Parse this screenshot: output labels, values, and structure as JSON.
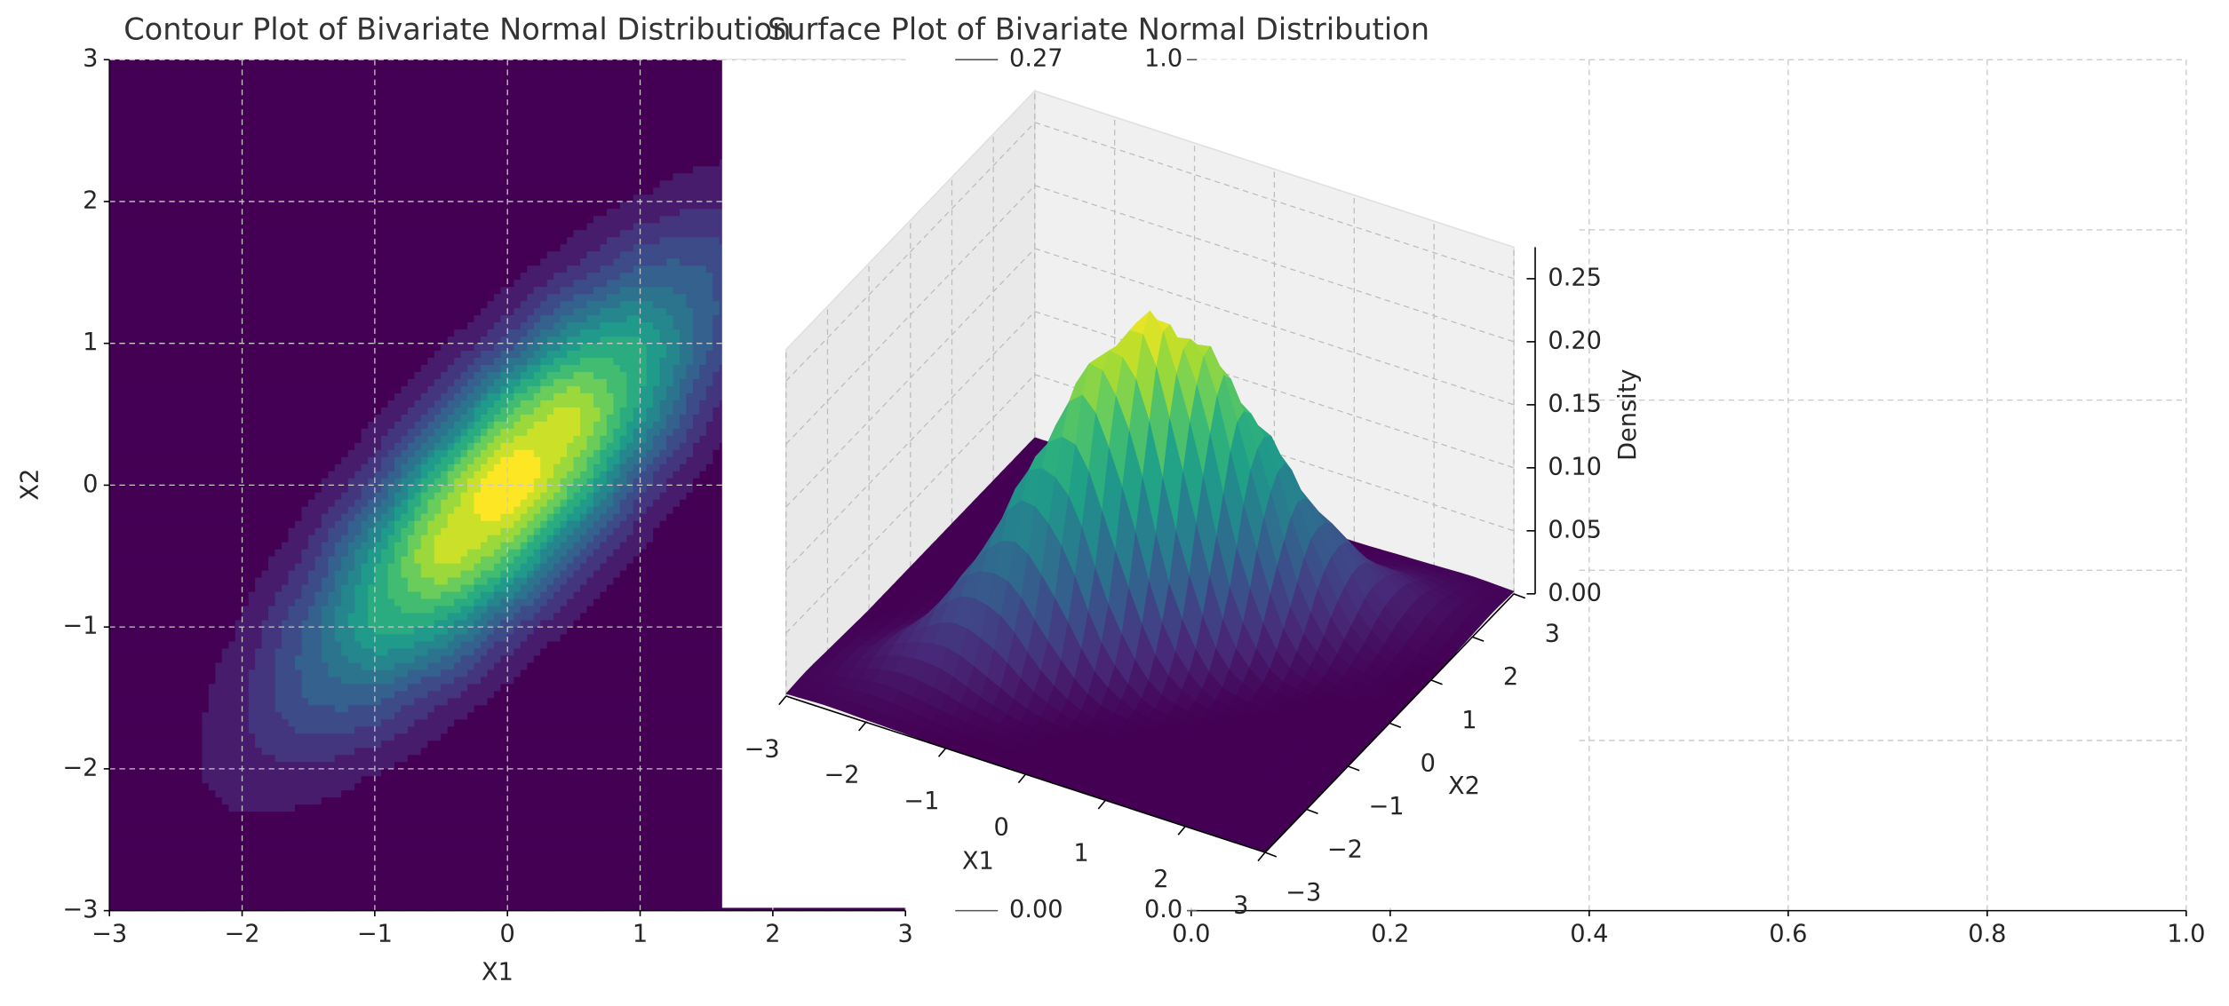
{
  "chart_data": [
    {
      "type": "contour",
      "title": "Contour Plot of Bivariate Normal Distribution",
      "xlabel": "X1",
      "ylabel": "X2",
      "x": [
        -3,
        -2.5,
        -2,
        -1.5,
        -1,
        -0.5,
        0,
        0.5,
        1,
        1.5,
        2,
        2.5,
        3
      ],
      "y": [
        -3,
        -2.5,
        -2,
        -1.5,
        -1,
        -0.5,
        0,
        0.5,
        1,
        1.5,
        2,
        2.5,
        3
      ],
      "z": [
        [
          0.002,
          0.003,
          0.002,
          0.001,
          0,
          0,
          0,
          0,
          0,
          0,
          0,
          0,
          0
        ],
        [
          0.003,
          0.008,
          0.012,
          0.008,
          0.003,
          0.001,
          0,
          0,
          0,
          0,
          0,
          0,
          0
        ],
        [
          0.002,
          0.012,
          0.029,
          0.035,
          0.022,
          0.007,
          0.001,
          0,
          0,
          0,
          0,
          0,
          0
        ],
        [
          0.001,
          0.008,
          0.035,
          0.076,
          0.081,
          0.044,
          0.012,
          0.002,
          0,
          0,
          0,
          0,
          0
        ],
        [
          0,
          0.003,
          0.022,
          0.081,
          0.152,
          0.142,
          0.066,
          0.016,
          0.002,
          0,
          0,
          0,
          0
        ],
        [
          0,
          0.001,
          0.007,
          0.044,
          0.142,
          0.23,
          0.187,
          0.076,
          0.016,
          0.002,
          0,
          0,
          0
        ],
        [
          0,
          0,
          0.001,
          0.012,
          0.066,
          0.187,
          0.265,
          0.187,
          0.066,
          0.012,
          0.001,
          0,
          0
        ],
        [
          0,
          0,
          0,
          0.002,
          0.016,
          0.076,
          0.187,
          0.23,
          0.142,
          0.044,
          0.007,
          0.001,
          0
        ],
        [
          0,
          0,
          0,
          0,
          0.002,
          0.016,
          0.066,
          0.142,
          0.152,
          0.081,
          0.022,
          0.003,
          0
        ],
        [
          0,
          0,
          0,
          0,
          0,
          0.002,
          0.012,
          0.044,
          0.081,
          0.076,
          0.035,
          0.008,
          0.001
        ],
        [
          0,
          0,
          0,
          0,
          0,
          0,
          0.001,
          0.007,
          0.022,
          0.035,
          0.029,
          0.012,
          0.002
        ],
        [
          0,
          0,
          0,
          0,
          0,
          0,
          0,
          0.001,
          0.003,
          0.008,
          0.012,
          0.008,
          0.003
        ],
        [
          0,
          0,
          0,
          0,
          0,
          0,
          0,
          0,
          0,
          0.001,
          0.002,
          0.003,
          0.002
        ]
      ],
      "xlim": [
        -3,
        3
      ],
      "ylim": [
        -3,
        3
      ],
      "xticks": [
        {
          "value": -3,
          "label": "−3"
        },
        {
          "value": -2,
          "label": "−2"
        },
        {
          "value": -1,
          "label": "−1"
        },
        0,
        1,
        2,
        3
      ],
      "yticks": [
        {
          "value": -3,
          "label": "−3"
        },
        {
          "value": -2,
          "label": "−2"
        },
        {
          "value": -1,
          "label": "−1"
        },
        0,
        1,
        2,
        3
      ],
      "grid": true,
      "colormap": "viridis"
    },
    {
      "type": "surface",
      "title": "Surface Plot of Bivariate Normal Distribution",
      "xlabel": "X1",
      "ylabel": "X2",
      "zlabel": "Density",
      "xlim": [
        -3,
        3
      ],
      "ylim": [
        -3,
        3
      ],
      "zlim": [
        0,
        0.275
      ],
      "xticks": [
        {
          "value": -3,
          "label": "−3"
        },
        {
          "value": -2,
          "label": "−2"
        },
        {
          "value": -1,
          "label": "−1"
        },
        0,
        1,
        2,
        3
      ],
      "yticks": [
        {
          "value": -3,
          "label": "−3"
        },
        {
          "value": -2,
          "label": "−2"
        },
        {
          "value": -1,
          "label": "−1"
        },
        0,
        1,
        2,
        3
      ],
      "zticks": [
        {
          "value": 0,
          "label": "0.00"
        },
        {
          "value": 0.05,
          "label": "0.05"
        },
        {
          "value": 0.1,
          "label": "0.10"
        },
        {
          "value": 0.15,
          "label": "0.15"
        },
        {
          "value": 0.2,
          "label": "0.20"
        },
        {
          "value": 0.25,
          "label": "0.25"
        }
      ],
      "grid": true,
      "colormap": "viridis"
    },
    {
      "type": "colorbar",
      "ylim": [
        0,
        0.27
      ],
      "yticks": [
        {
          "value": 0,
          "label": "0.00"
        },
        0.27
      ]
    },
    {
      "type": "axes",
      "ylim": [
        0,
        1
      ],
      "yticks": [
        {
          "value": 0,
          "label": "0.0"
        },
        {
          "value": 1,
          "label": "1.0"
        }
      ]
    },
    {
      "type": "axes",
      "xlim": [
        0,
        1
      ],
      "ylim": [
        0,
        1
      ],
      "xticks": [
        {
          "value": 0,
          "label": "0.0"
        },
        {
          "value": 0.2,
          "label": "0.2"
        },
        {
          "value": 0.4,
          "label": "0.4"
        },
        {
          "value": 0.6,
          "label": "0.6"
        },
        {
          "value": 0.8,
          "label": "0.8"
        },
        {
          "value": 1,
          "label": "1.0"
        }
      ],
      "yticks": [
        0,
        0.2,
        0.4,
        0.6,
        0.8,
        1
      ],
      "grid": true
    }
  ]
}
